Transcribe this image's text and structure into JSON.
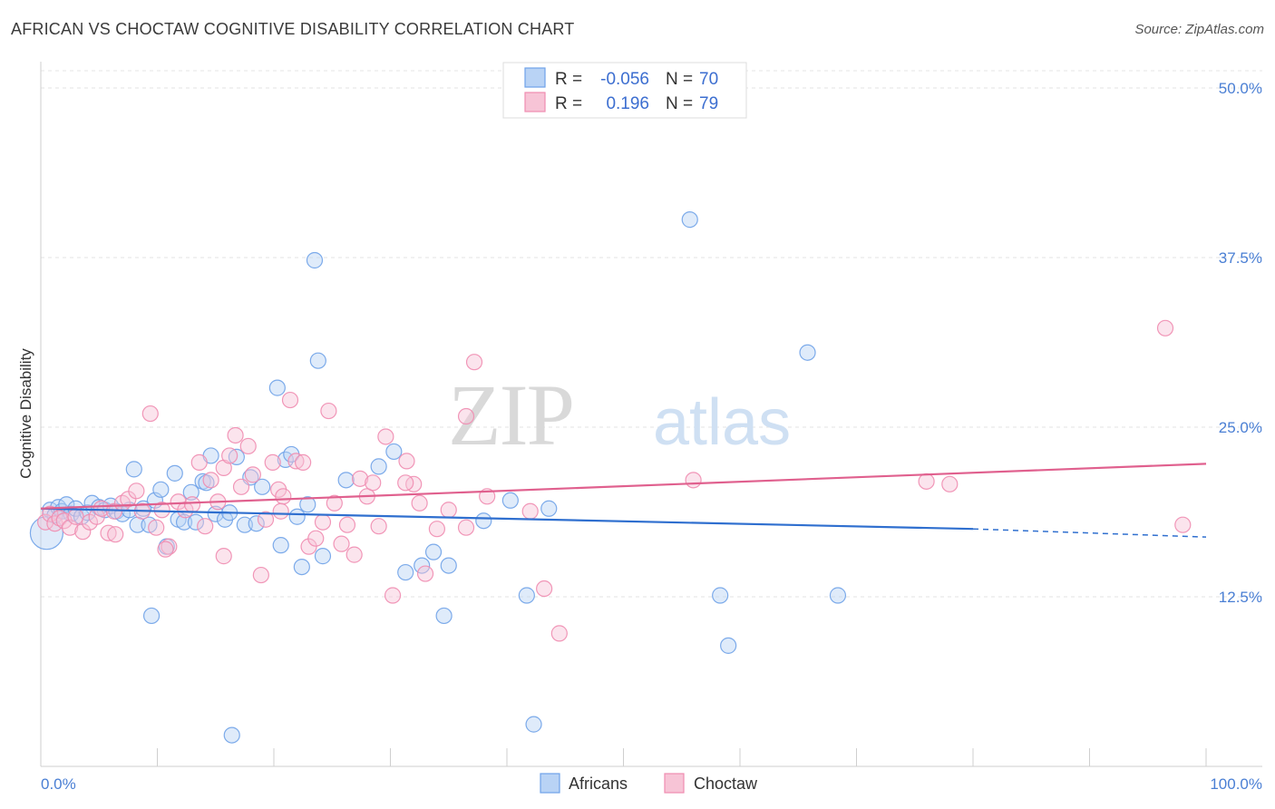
{
  "title": "AFRICAN VS CHOCTAW COGNITIVE DISABILITY CORRELATION CHART",
  "source": "Source: ZipAtlas.com",
  "watermark": {
    "zip": "ZIP",
    "atlas": "atlas"
  },
  "legend_top": [
    {
      "r_label": "R =",
      "r_value": "-0.056",
      "n_label": "N =",
      "n_value": "70",
      "color": "#6fa2e8"
    },
    {
      "r_label": "R =",
      "r_value": "0.196",
      "n_label": "N =",
      "n_value": "79",
      "color": "#f08cb0"
    }
  ],
  "chart_data": {
    "type": "scatter",
    "title": "AFRICAN VS CHOCTAW COGNITIVE DISABILITY CORRELATION CHART",
    "ylabel": "Cognitive Disability",
    "xlabel": "",
    "xlim": [
      0,
      100
    ],
    "ylim": [
      0,
      50
    ],
    "x_ticks": [
      "0.0%",
      "100.0%"
    ],
    "y_ticks": [
      {
        "value": 12.5,
        "label": "12.5%"
      },
      {
        "value": 25.0,
        "label": "25.0%"
      },
      {
        "value": 37.5,
        "label": "37.5%"
      },
      {
        "value": 50.0,
        "label": "50.0%"
      }
    ],
    "grid": true,
    "legend_position": "top-center",
    "series": [
      {
        "name": "Africans",
        "color": "#6fa2e8",
        "fill": "#b9d3f5",
        "trend": {
          "x0": 0,
          "y0": 19.0,
          "x1": 80,
          "y1": 17.5,
          "x_dash_end": 100,
          "y_dash_end": 16.9,
          "color": "#2f6fcf"
        },
        "points": [
          [
            0.5,
            17.2
          ],
          [
            0.8,
            18.9
          ],
          [
            1.2,
            18.5
          ],
          [
            1.5,
            19.1
          ],
          [
            1.8,
            18.8
          ],
          [
            2.2,
            19.3
          ],
          [
            2.6,
            18.6
          ],
          [
            3.0,
            19.0
          ],
          [
            3.5,
            18.4
          ],
          [
            4.0,
            18.7
          ],
          [
            4.4,
            19.4
          ],
          [
            5.0,
            19.1
          ],
          [
            5.5,
            18.9
          ],
          [
            6.0,
            19.2
          ],
          [
            6.5,
            18.8
          ],
          [
            7.0,
            18.6
          ],
          [
            7.6,
            18.9
          ],
          [
            8.0,
            21.9
          ],
          [
            8.3,
            17.8
          ],
          [
            8.8,
            19.0
          ],
          [
            9.3,
            17.8
          ],
          [
            9.8,
            19.6
          ],
          [
            10.3,
            20.4
          ],
          [
            10.8,
            16.2
          ],
          [
            11.5,
            21.6
          ],
          [
            11.8,
            18.2
          ],
          [
            12.3,
            18.0
          ],
          [
            12.9,
            20.2
          ],
          [
            13.3,
            18.0
          ],
          [
            13.9,
            21.0
          ],
          [
            14.2,
            20.9
          ],
          [
            14.6,
            22.9
          ],
          [
            15.0,
            18.6
          ],
          [
            15.8,
            18.2
          ],
          [
            16.2,
            18.7
          ],
          [
            16.8,
            22.8
          ],
          [
            17.5,
            17.8
          ],
          [
            18.0,
            21.3
          ],
          [
            18.5,
            17.9
          ],
          [
            19.0,
            20.6
          ],
          [
            20.3,
            27.9
          ],
          [
            20.6,
            16.3
          ],
          [
            21.0,
            22.6
          ],
          [
            21.5,
            23.0
          ],
          [
            22.0,
            18.4
          ],
          [
            22.4,
            14.7
          ],
          [
            22.9,
            19.3
          ],
          [
            23.5,
            37.3
          ],
          [
            23.8,
            29.9
          ],
          [
            24.2,
            15.5
          ],
          [
            26.2,
            21.1
          ],
          [
            29.0,
            22.1
          ],
          [
            30.3,
            23.2
          ],
          [
            31.3,
            14.3
          ],
          [
            32.7,
            14.8
          ],
          [
            33.7,
            15.8
          ],
          [
            34.6,
            11.1
          ],
          [
            35.0,
            14.8
          ],
          [
            38.0,
            18.1
          ],
          [
            40.3,
            19.6
          ],
          [
            41.7,
            12.6
          ],
          [
            42.3,
            3.1
          ],
          [
            43.6,
            19.0
          ],
          [
            55.7,
            40.3
          ],
          [
            58.3,
            12.6
          ],
          [
            59.0,
            8.9
          ],
          [
            65.8,
            30.5
          ],
          [
            68.4,
            12.6
          ],
          [
            16.4,
            2.3
          ],
          [
            9.5,
            11.1
          ]
        ]
      },
      {
        "name": "Choctaw",
        "color": "#f08cb0",
        "fill": "#f7c4d6",
        "trend": {
          "x0": 0,
          "y0": 19.0,
          "x1": 100,
          "y1": 22.3,
          "color": "#e0608e"
        },
        "points": [
          [
            0.4,
            18.0
          ],
          [
            0.8,
            18.6
          ],
          [
            1.2,
            17.9
          ],
          [
            1.6,
            18.3
          ],
          [
            2.0,
            18.1
          ],
          [
            2.5,
            17.6
          ],
          [
            3.0,
            18.4
          ],
          [
            3.6,
            17.3
          ],
          [
            4.2,
            18.0
          ],
          [
            4.8,
            18.4
          ],
          [
            5.2,
            19.0
          ],
          [
            5.8,
            17.2
          ],
          [
            6.3,
            18.8
          ],
          [
            7.0,
            19.4
          ],
          [
            7.5,
            19.7
          ],
          [
            8.2,
            20.3
          ],
          [
            8.7,
            18.8
          ],
          [
            9.4,
            26.0
          ],
          [
            9.9,
            17.6
          ],
          [
            10.4,
            18.9
          ],
          [
            11.0,
            16.2
          ],
          [
            11.8,
            19.5
          ],
          [
            12.4,
            18.9
          ],
          [
            13.0,
            19.3
          ],
          [
            13.6,
            22.4
          ],
          [
            14.1,
            17.7
          ],
          [
            14.6,
            21.1
          ],
          [
            15.2,
            19.5
          ],
          [
            15.7,
            22.0
          ],
          [
            16.2,
            22.9
          ],
          [
            16.7,
            24.4
          ],
          [
            17.2,
            20.6
          ],
          [
            17.8,
            23.6
          ],
          [
            18.2,
            21.5
          ],
          [
            18.9,
            14.1
          ],
          [
            19.3,
            18.2
          ],
          [
            19.9,
            22.4
          ],
          [
            20.4,
            20.4
          ],
          [
            20.8,
            19.9
          ],
          [
            21.4,
            27.0
          ],
          [
            21.9,
            22.5
          ],
          [
            22.5,
            22.4
          ],
          [
            23.0,
            16.2
          ],
          [
            23.6,
            16.8
          ],
          [
            24.2,
            18.0
          ],
          [
            24.7,
            26.2
          ],
          [
            25.2,
            19.4
          ],
          [
            25.8,
            16.4
          ],
          [
            26.3,
            17.8
          ],
          [
            26.9,
            15.6
          ],
          [
            27.4,
            21.2
          ],
          [
            28.0,
            19.9
          ],
          [
            28.5,
            20.9
          ],
          [
            29.0,
            17.7
          ],
          [
            29.6,
            24.3
          ],
          [
            30.2,
            12.6
          ],
          [
            31.4,
            22.5
          ],
          [
            32.0,
            20.8
          ],
          [
            32.5,
            19.4
          ],
          [
            33.0,
            14.2
          ],
          [
            34.0,
            17.5
          ],
          [
            35.0,
            18.9
          ],
          [
            36.5,
            25.8
          ],
          [
            37.2,
            29.8
          ],
          [
            38.3,
            19.9
          ],
          [
            42.0,
            18.8
          ],
          [
            43.2,
            13.1
          ],
          [
            44.5,
            9.8
          ],
          [
            56.0,
            21.1
          ],
          [
            76.0,
            21.0
          ],
          [
            78.0,
            20.8
          ],
          [
            96.5,
            32.3
          ],
          [
            98.0,
            17.8
          ],
          [
            6.4,
            17.1
          ],
          [
            10.7,
            16.0
          ],
          [
            15.7,
            15.5
          ],
          [
            20.6,
            18.8
          ],
          [
            31.3,
            20.9
          ],
          [
            36.5,
            17.6
          ]
        ]
      }
    ]
  },
  "bottom_legend": [
    {
      "label": "Africans",
      "color": "#6fa2e8",
      "fill": "#b9d3f5"
    },
    {
      "label": "Choctaw",
      "color": "#f08cb0",
      "fill": "#f7c4d6"
    }
  ]
}
